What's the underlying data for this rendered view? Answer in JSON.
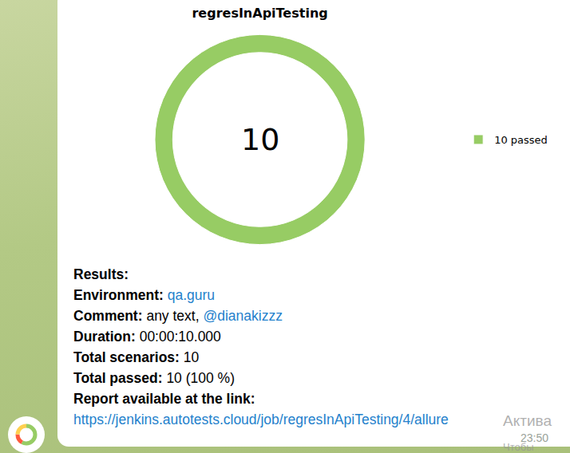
{
  "chart_data": {
    "type": "donut",
    "title": "regresInApiTesting",
    "categories": [
      "10 passed"
    ],
    "values": [
      10
    ],
    "colors": [
      "#97cc64"
    ],
    "legend": "right",
    "annotations": [
      "10"
    ]
  },
  "message": {
    "heading": "Results:",
    "fields": [
      {
        "label": "Environment:",
        "parts": [
          {
            "text": "qa.guru",
            "link": true
          }
        ]
      },
      {
        "label": "Comment:",
        "parts": [
          {
            "text": "any text, "
          },
          {
            "text": "@dianakizzz",
            "link": true
          }
        ]
      },
      {
        "label": "Duration:",
        "parts": [
          {
            "text": "00:00:10.000"
          }
        ]
      },
      {
        "label": "Total scenarios:",
        "parts": [
          {
            "text": "10"
          }
        ]
      },
      {
        "label": "Total passed:",
        "parts": [
          {
            "text": "10 (100 %)"
          }
        ]
      }
    ],
    "footer_label": "Report available at the link:",
    "footer_link": "https://jenkins.autotests.cloud/job/regresInApiTesting/4/allure",
    "time": "23:50"
  },
  "overlay": [
    "Актива",
    "Чтобы"
  ]
}
